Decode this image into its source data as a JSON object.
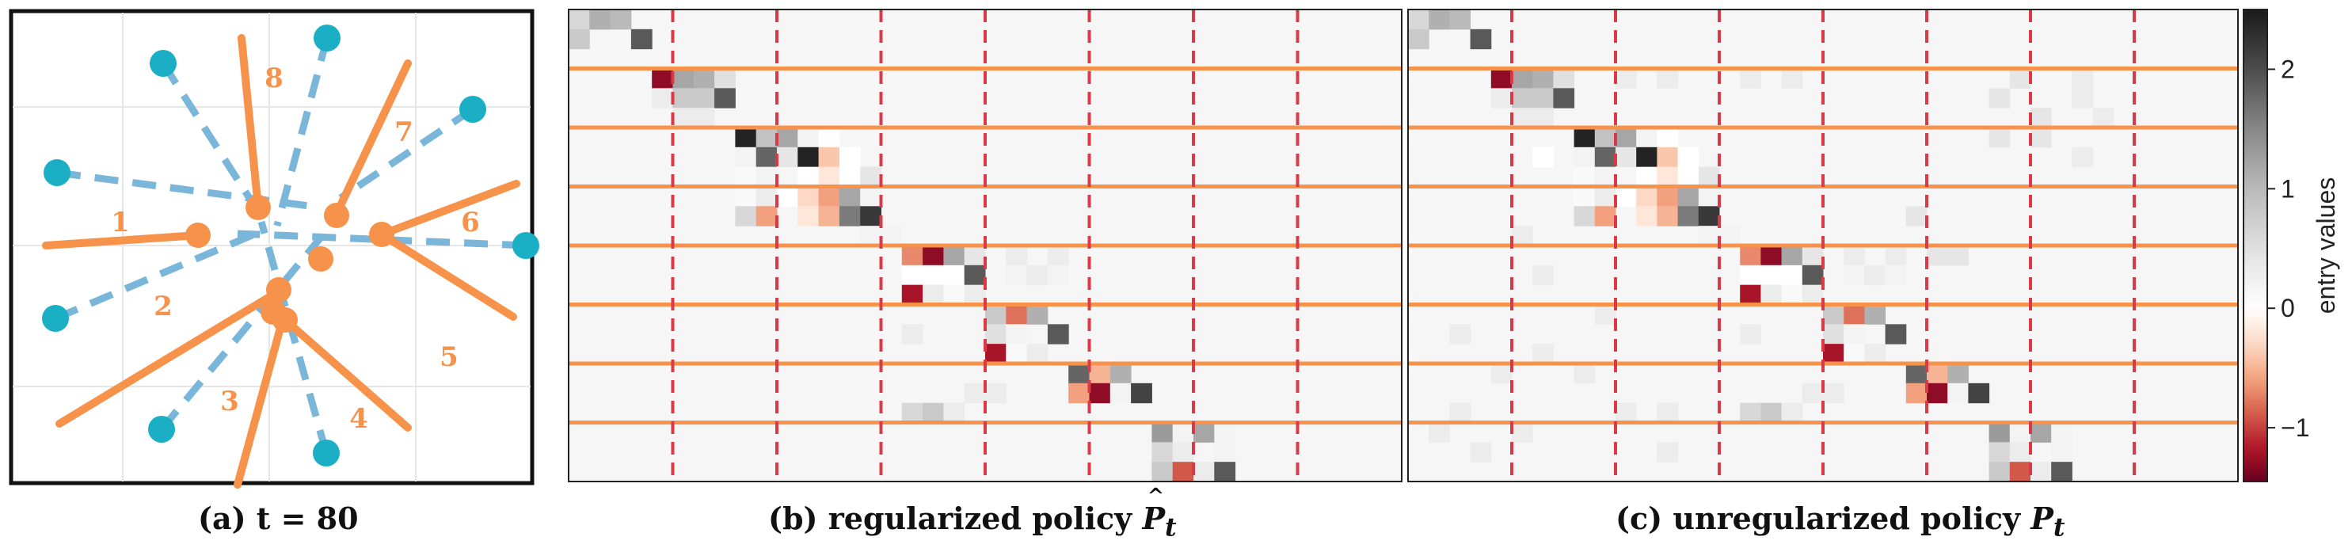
{
  "captions": {
    "a": "(a) t = 80",
    "b_prefix": "(b) regularized policy",
    "b_symbol": "P",
    "b_sub": "t",
    "c_prefix": "(c) unregularized policy",
    "c_symbol": "P",
    "c_sub": "t"
  },
  "colors": {
    "agent": "#F7924A",
    "target": "#1AAFC4",
    "dashed_link": "#7AB6DA",
    "separator_line": "#F7924A",
    "separator_dash": "#D83A48",
    "background_matrix": "#F6C1A4"
  },
  "panel_a": {
    "agent_labels": [
      "1",
      "2",
      "3",
      "4",
      "5",
      "6",
      "7",
      "8"
    ]
  },
  "colorbar": {
    "label": "entry values",
    "ticks": [
      "2",
      "1",
      "0",
      "−1"
    ],
    "range": [
      -1.45,
      2.5
    ],
    "colormap": [
      "#67001F",
      "#B2182B",
      "#D6604D",
      "#F4A582",
      "#FDDBC7",
      "#FFFFFF",
      "#E0E0E0",
      "#BABABA",
      "#878787",
      "#4D4D4D",
      "#1A1A1A"
    ]
  },
  "chart_data": [
    {
      "type": "heatmap",
      "title": "(b) regularized policy",
      "rows": 24,
      "cols": 40,
      "block_rows": 3,
      "block_cols": 5,
      "background_value": 0.15,
      "cells": [
        [
          0,
          0,
          0.6
        ],
        [
          0,
          1,
          1.1
        ],
        [
          0,
          2,
          1.0
        ],
        [
          1,
          0,
          0.8
        ],
        [
          1,
          3,
          1.9
        ],
        [
          3,
          4,
          -1.3
        ],
        [
          3,
          5,
          1.2
        ],
        [
          3,
          6,
          1.1
        ],
        [
          3,
          7,
          0.5
        ],
        [
          4,
          4,
          0.3
        ],
        [
          4,
          5,
          0.8
        ],
        [
          4,
          6,
          0.8
        ],
        [
          4,
          7,
          1.9
        ],
        [
          5,
          5,
          0.3
        ],
        [
          5,
          6,
          0.3
        ],
        [
          6,
          8,
          2.4
        ],
        [
          6,
          9,
          0.9
        ],
        [
          6,
          10,
          1.2
        ],
        [
          6,
          11,
          0.2
        ],
        [
          6,
          12,
          0.0
        ],
        [
          7,
          8,
          0.2
        ],
        [
          7,
          9,
          1.8
        ],
        [
          7,
          10,
          0.4
        ],
        [
          7,
          11,
          2.4
        ],
        [
          7,
          12,
          -0.4
        ],
        [
          7,
          13,
          0.0
        ],
        [
          8,
          8,
          0.1
        ],
        [
          8,
          9,
          0.2
        ],
        [
          8,
          11,
          0.0
        ],
        [
          8,
          12,
          -0.2
        ],
        [
          8,
          13,
          0.0
        ],
        [
          8,
          14,
          0.4
        ],
        [
          9,
          8,
          0.1
        ],
        [
          9,
          9,
          0.3
        ],
        [
          9,
          10,
          0.0
        ],
        [
          9,
          11,
          -0.3
        ],
        [
          9,
          12,
          -0.6
        ],
        [
          9,
          13,
          1.2
        ],
        [
          9,
          14,
          0.2
        ],
        [
          10,
          8,
          0.6
        ],
        [
          10,
          9,
          -0.6
        ],
        [
          10,
          11,
          -0.2
        ],
        [
          10,
          12,
          -0.5
        ],
        [
          10,
          13,
          1.6
        ],
        [
          10,
          14,
          2.2
        ],
        [
          11,
          14,
          0.2
        ],
        [
          11,
          15,
          0.2
        ],
        [
          12,
          16,
          -0.7
        ],
        [
          12,
          17,
          -1.3
        ],
        [
          12,
          18,
          1.2
        ],
        [
          12,
          19,
          0.4
        ],
        [
          12,
          21,
          0.3
        ],
        [
          12,
          23,
          0.3
        ],
        [
          13,
          16,
          0.0
        ],
        [
          13,
          17,
          0.0
        ],
        [
          13,
          18,
          0.0
        ],
        [
          13,
          19,
          1.9
        ],
        [
          13,
          21,
          0.2
        ],
        [
          13,
          22,
          0.3
        ],
        [
          13,
          23,
          0.2
        ],
        [
          14,
          16,
          -1.2
        ],
        [
          14,
          17,
          0.3
        ],
        [
          14,
          18,
          0.1
        ],
        [
          14,
          19,
          0.3
        ],
        [
          15,
          20,
          0.8
        ],
        [
          15,
          21,
          -0.8
        ],
        [
          15,
          22,
          1.1
        ],
        [
          16,
          16,
          0.3
        ],
        [
          16,
          20,
          0.5
        ],
        [
          16,
          21,
          0.2
        ],
        [
          16,
          23,
          1.9
        ],
        [
          17,
          20,
          -1.2
        ],
        [
          17,
          21,
          0.1
        ],
        [
          17,
          22,
          0.3
        ],
        [
          18,
          24,
          1.8
        ],
        [
          18,
          25,
          -0.5
        ],
        [
          18,
          26,
          1.1
        ],
        [
          19,
          19,
          0.3
        ],
        [
          19,
          20,
          0.3
        ],
        [
          19,
          24,
          -0.6
        ],
        [
          19,
          25,
          -1.3
        ],
        [
          19,
          26,
          0.2
        ],
        [
          19,
          27,
          2.1
        ],
        [
          20,
          16,
          0.6
        ],
        [
          20,
          17,
          0.8
        ],
        [
          20,
          18,
          0.3
        ],
        [
          21,
          28,
          1.3
        ],
        [
          21,
          29,
          0.2
        ],
        [
          21,
          30,
          1.2
        ],
        [
          21,
          31,
          0.2
        ],
        [
          22,
          28,
          0.6
        ],
        [
          22,
          29,
          0.3
        ],
        [
          22,
          31,
          0.2
        ],
        [
          23,
          28,
          0.8
        ],
        [
          23,
          29,
          -0.9
        ],
        [
          23,
          30,
          0.3
        ],
        [
          23,
          31,
          1.9
        ]
      ]
    },
    {
      "type": "heatmap",
      "title": "(c) unregularized policy",
      "rows": 24,
      "cols": 40,
      "block_rows": 3,
      "block_cols": 5,
      "background_value": 0.15,
      "cells": [
        [
          0,
          0,
          0.6
        ],
        [
          0,
          1,
          1.1
        ],
        [
          0,
          2,
          1.0
        ],
        [
          1,
          0,
          0.8
        ],
        [
          1,
          3,
          1.9
        ],
        [
          3,
          4,
          -1.3
        ],
        [
          3,
          5,
          1.2
        ],
        [
          3,
          6,
          1.1
        ],
        [
          3,
          7,
          0.5
        ],
        [
          3,
          10,
          0.3
        ],
        [
          3,
          12,
          0.3
        ],
        [
          3,
          16,
          0.3
        ],
        [
          3,
          18,
          0.3
        ],
        [
          3,
          29,
          0.4
        ],
        [
          3,
          32,
          0.3
        ],
        [
          4,
          4,
          0.3
        ],
        [
          4,
          5,
          0.8
        ],
        [
          4,
          6,
          0.8
        ],
        [
          4,
          7,
          1.9
        ],
        [
          4,
          28,
          0.4
        ],
        [
          4,
          32,
          0.3
        ],
        [
          5,
          5,
          0.3
        ],
        [
          5,
          6,
          0.3
        ],
        [
          5,
          30,
          0.4
        ],
        [
          5,
          33,
          0.3
        ],
        [
          6,
          8,
          2.4
        ],
        [
          6,
          9,
          0.9
        ],
        [
          6,
          10,
          1.2
        ],
        [
          6,
          11,
          0.2
        ],
        [
          6,
          12,
          0.0
        ],
        [
          6,
          28,
          0.4
        ],
        [
          6,
          30,
          0.4
        ],
        [
          7,
          6,
          0.0
        ],
        [
          7,
          8,
          0.2
        ],
        [
          7,
          9,
          1.8
        ],
        [
          7,
          10,
          0.4
        ],
        [
          7,
          11,
          2.4
        ],
        [
          7,
          12,
          -0.4
        ],
        [
          7,
          13,
          0.0
        ],
        [
          7,
          32,
          0.3
        ],
        [
          8,
          8,
          0.1
        ],
        [
          8,
          9,
          0.2
        ],
        [
          8,
          11,
          0.0
        ],
        [
          8,
          12,
          -0.2
        ],
        [
          8,
          13,
          0.0
        ],
        [
          8,
          14,
          0.4
        ],
        [
          9,
          8,
          0.1
        ],
        [
          9,
          9,
          0.3
        ],
        [
          9,
          10,
          0.0
        ],
        [
          9,
          11,
          -0.3
        ],
        [
          9,
          12,
          -0.6
        ],
        [
          9,
          13,
          1.2
        ],
        [
          9,
          14,
          0.2
        ],
        [
          10,
          8,
          0.6
        ],
        [
          10,
          9,
          -0.6
        ],
        [
          10,
          11,
          -0.2
        ],
        [
          10,
          12,
          -0.5
        ],
        [
          10,
          13,
          1.6
        ],
        [
          10,
          14,
          2.2
        ],
        [
          10,
          24,
          0.4
        ],
        [
          11,
          14,
          0.2
        ],
        [
          11,
          15,
          0.2
        ],
        [
          11,
          5,
          0.3
        ],
        [
          12,
          16,
          -0.7
        ],
        [
          12,
          17,
          -1.3
        ],
        [
          12,
          18,
          1.2
        ],
        [
          12,
          19,
          0.4
        ],
        [
          12,
          21,
          0.3
        ],
        [
          12,
          23,
          0.3
        ],
        [
          12,
          25,
          0.4
        ],
        [
          12,
          26,
          0.4
        ],
        [
          13,
          16,
          0.0
        ],
        [
          13,
          17,
          0.0
        ],
        [
          13,
          18,
          0.0
        ],
        [
          13,
          19,
          1.9
        ],
        [
          13,
          21,
          0.2
        ],
        [
          13,
          22,
          0.3
        ],
        [
          13,
          23,
          0.2
        ],
        [
          13,
          6,
          0.3
        ],
        [
          14,
          16,
          -1.2
        ],
        [
          14,
          17,
          0.3
        ],
        [
          14,
          18,
          0.1
        ],
        [
          14,
          19,
          0.3
        ],
        [
          15,
          20,
          0.8
        ],
        [
          15,
          21,
          -0.8
        ],
        [
          15,
          22,
          1.1
        ],
        [
          15,
          9,
          0.3
        ],
        [
          16,
          16,
          0.3
        ],
        [
          16,
          20,
          0.5
        ],
        [
          16,
          21,
          0.2
        ],
        [
          16,
          23,
          1.9
        ],
        [
          16,
          2,
          0.3
        ],
        [
          17,
          20,
          -1.2
        ],
        [
          17,
          21,
          0.1
        ],
        [
          17,
          22,
          0.3
        ],
        [
          17,
          6,
          0.3
        ],
        [
          18,
          24,
          1.8
        ],
        [
          18,
          25,
          -0.5
        ],
        [
          18,
          26,
          1.1
        ],
        [
          18,
          4,
          0.3
        ],
        [
          18,
          8,
          0.3
        ],
        [
          19,
          19,
          0.3
        ],
        [
          19,
          20,
          0.3
        ],
        [
          19,
          24,
          -0.6
        ],
        [
          19,
          25,
          -1.3
        ],
        [
          19,
          26,
          0.2
        ],
        [
          19,
          27,
          2.1
        ],
        [
          20,
          16,
          0.6
        ],
        [
          20,
          17,
          0.8
        ],
        [
          20,
          18,
          0.3
        ],
        [
          20,
          2,
          0.3
        ],
        [
          20,
          10,
          0.3
        ],
        [
          20,
          12,
          0.3
        ],
        [
          21,
          28,
          1.3
        ],
        [
          21,
          29,
          0.2
        ],
        [
          21,
          30,
          1.2
        ],
        [
          21,
          31,
          0.2
        ],
        [
          21,
          1,
          0.3
        ],
        [
          21,
          5,
          0.3
        ],
        [
          22,
          28,
          0.6
        ],
        [
          22,
          29,
          0.3
        ],
        [
          22,
          31,
          0.2
        ],
        [
          22,
          3,
          0.3
        ],
        [
          22,
          12,
          0.3
        ],
        [
          23,
          28,
          0.8
        ],
        [
          23,
          29,
          -0.9
        ],
        [
          23,
          30,
          0.3
        ],
        [
          23,
          31,
          1.9
        ]
      ]
    }
  ]
}
